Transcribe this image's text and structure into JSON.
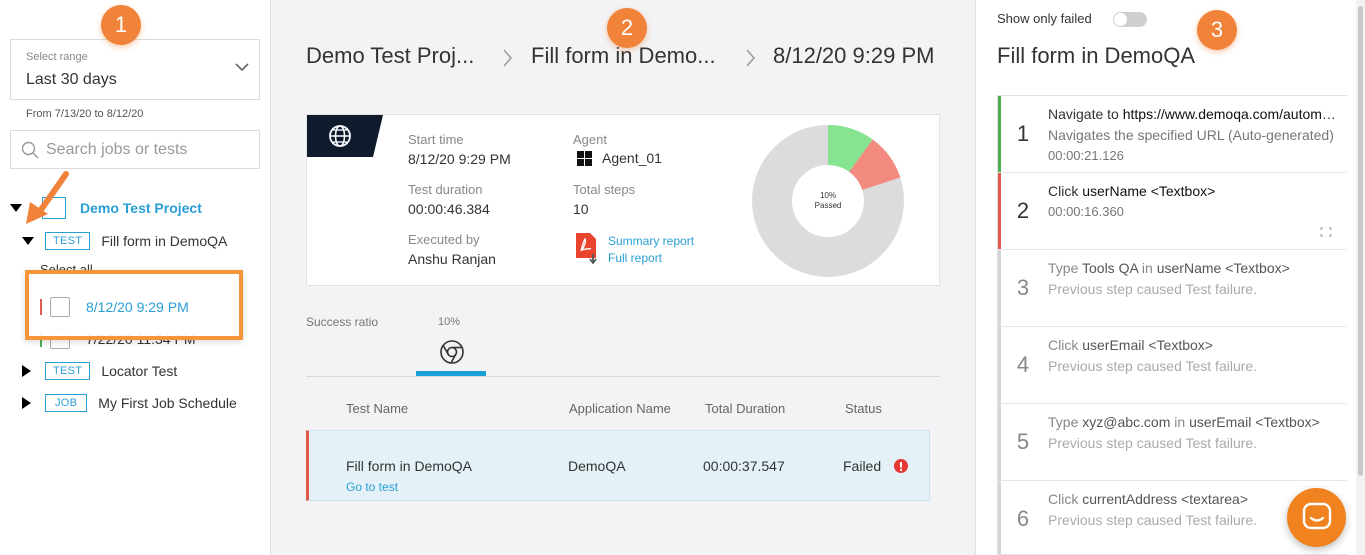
{
  "sidebar": {
    "range_caption": "Select range",
    "range_value": "Last 30 days",
    "range_from": "From 7/13/20 to 8/12/20",
    "search_placeholder": "Search jobs or tests",
    "project": "Demo Test Project",
    "test_tag": "TEST",
    "job_tag": "JOB",
    "test1": "Fill form in DemoQA",
    "select_all": "Select all",
    "runs": [
      {
        "label": "8/12/20 9:29 PM",
        "status_color": "#e05a4f"
      },
      {
        "label": "7/22/20 11:34 PM",
        "status_color": "#4caf50"
      }
    ],
    "test2": "Locator Test",
    "job1": "My First Job Schedule"
  },
  "badges": [
    "1",
    "2",
    "3"
  ],
  "breadcrumb": [
    "Demo Test Proj...",
    "Fill form in Demo...",
    "8/12/20 9:29 PM"
  ],
  "summary": {
    "start_time_label": "Start time",
    "start_time": "8/12/20 9:29 PM",
    "agent_label": "Agent",
    "agent": "Agent_01",
    "duration_label": "Test duration",
    "duration": "00:00:46.384",
    "total_steps_label": "Total steps",
    "total_steps": "10",
    "executed_by_label": "Executed by",
    "executed_by": "Anshu Ranjan",
    "summary_report": "Summary report",
    "full_report": "Full report",
    "donut_pct": "10%",
    "donut_caption": "Passed",
    "donut_passed_fraction": 0.1,
    "donut_failed_fraction": 0.1,
    "colors": {
      "passed": "#86e38f",
      "failed": "#f38a80",
      "remaining": "#dcdcdc"
    }
  },
  "ratio": {
    "label": "Success ratio",
    "pct": "10%"
  },
  "table": {
    "headers": [
      "Test Name",
      "Application Name",
      "Total Duration",
      "Status"
    ],
    "row": {
      "name": "Fill form in DemoQA",
      "link": "Go to test",
      "app": "DemoQA",
      "duration": "00:00:37.547",
      "status": "Failed"
    }
  },
  "right": {
    "toggle_label": "Show only failed",
    "title": "Fill form in DemoQA",
    "steps": [
      {
        "num": "1",
        "pre": "Navigate to ",
        "key": "https://www.demoqa.com/automation-practice-form",
        "mid": "",
        "key2": "",
        "sub": "Navigates the specified URL (Auto-generated)",
        "time": "00:00:21.126",
        "accent": "#4caf50",
        "dim": false
      },
      {
        "num": "2",
        "pre": "Click ",
        "key": "userName <Textbox>",
        "mid": "",
        "key2": "",
        "sub": "",
        "time": "00:00:16.360",
        "accent": "#e05a4f",
        "dim": false
      },
      {
        "num": "3",
        "pre": "Type ",
        "key": "Tools QA",
        "mid": " in ",
        "key2": "userName <Textbox>",
        "sub": "Previous step caused Test failure.",
        "time": "",
        "accent": "#d6d6d6",
        "dim": true
      },
      {
        "num": "4",
        "pre": "Click ",
        "key": "userEmail <Textbox>",
        "mid": "",
        "key2": "",
        "sub": "Previous step caused Test failure.",
        "time": "",
        "accent": "#d6d6d6",
        "dim": true
      },
      {
        "num": "5",
        "pre": "Type ",
        "key": "xyz@abc.com",
        "mid": " in ",
        "key2": "userEmail <Textbox>",
        "sub": "Previous step caused Test failure.",
        "time": "",
        "accent": "#d6d6d6",
        "dim": true
      },
      {
        "num": "6",
        "pre": "Click ",
        "key": "currentAddress <textarea>",
        "mid": "",
        "key2": "",
        "sub": "Previous step caused Test failure.",
        "time": "",
        "accent": "#d6d6d6",
        "dim": true
      }
    ]
  }
}
